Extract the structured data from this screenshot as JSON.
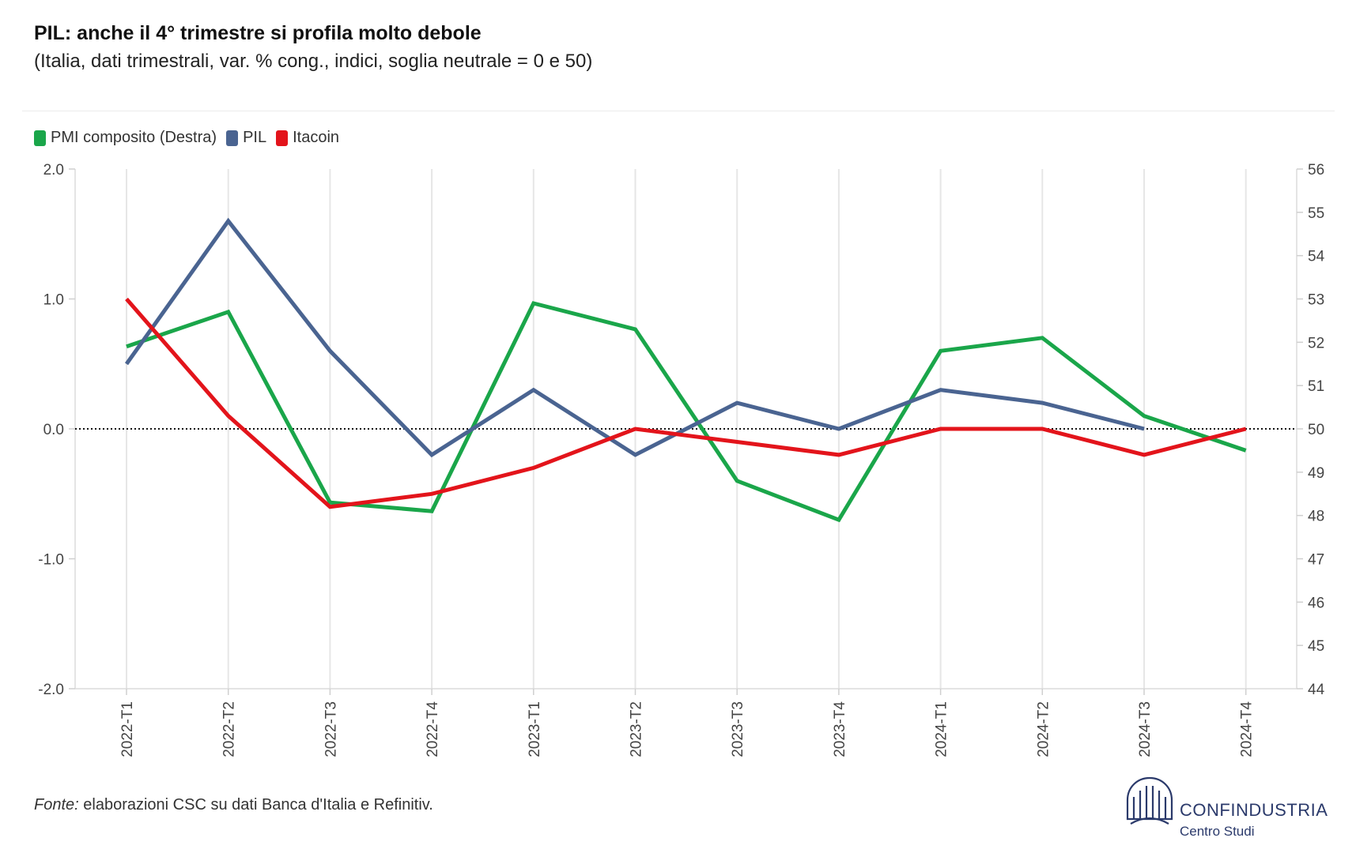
{
  "header": {
    "title": "PIL: anche il 4° trimestre si profila molto debole",
    "subtitle": "(Italia, dati trimestrali, var. % cong., indici, soglia neutrale = 0 e 50)"
  },
  "footer": {
    "source_label": "Fonte:",
    "source_text": "elaborazioni CSC su dati Banca d'Italia e Refinitiv.",
    "logo_name": "CONFINDUSTRIA",
    "logo_sub": "Centro Studi"
  },
  "chart_data": {
    "type": "line",
    "categories": [
      "2022-T1",
      "2022-T2",
      "2022-T3",
      "2022-T4",
      "2023-T1",
      "2023-T2",
      "2023-T3",
      "2023-T4",
      "2024-T1",
      "2024-T2",
      "2024-T3",
      "2024-T4"
    ],
    "left_axis": {
      "ylim": [
        -2.0,
        2.0
      ],
      "ticks": [
        "2.0",
        "1.0",
        "0.0",
        "-1.0",
        "-2.0"
      ],
      "tick_values": [
        2,
        1,
        0,
        -1,
        -2
      ]
    },
    "right_axis": {
      "ylim": [
        44,
        56
      ],
      "ticks": [
        "56",
        "55",
        "54",
        "53",
        "52",
        "51",
        "50",
        "49",
        "48",
        "47",
        "46",
        "45",
        "44"
      ],
      "tick_values": [
        56,
        55,
        54,
        53,
        52,
        51,
        50,
        49,
        48,
        47,
        46,
        45,
        44
      ]
    },
    "reference_line": {
      "axis": "left",
      "value": 0,
      "style": "dotted"
    },
    "grid": "vertical",
    "legend_position": "top-left",
    "series": [
      {
        "name": "PMI composito (Destra)",
        "axis": "right",
        "color": "#1aa64a",
        "values": [
          51.9,
          52.7,
          48.3,
          48.1,
          52.9,
          52.3,
          48.8,
          47.9,
          51.8,
          52.1,
          50.3,
          49.5
        ]
      },
      {
        "name": "PIL",
        "axis": "left",
        "color": "#4a6491",
        "values": [
          0.5,
          1.6,
          0.6,
          -0.2,
          0.3,
          -0.2,
          0.2,
          0.0,
          0.3,
          0.2,
          0.0,
          null
        ]
      },
      {
        "name": "Itacoin",
        "axis": "left",
        "color": "#e3141b",
        "values": [
          1.0,
          0.1,
          -0.6,
          -0.5,
          -0.3,
          0.0,
          -0.1,
          -0.2,
          0.0,
          0.0,
          -0.2,
          0.0
        ]
      }
    ]
  }
}
